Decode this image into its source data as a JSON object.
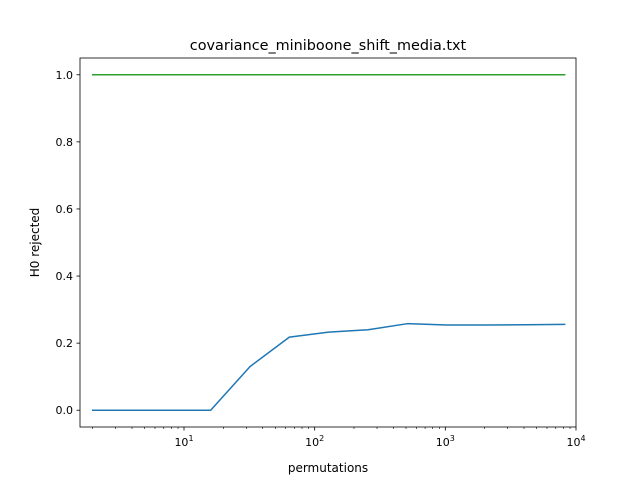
{
  "chart_data": {
    "type": "line",
    "title": "covariance_miniboone_shift_media.txt",
    "xlabel": "permutations",
    "ylabel": "H0 rejected",
    "xscale": "log",
    "xlim": [
      1.6,
      10000
    ],
    "ylim": [
      -0.05,
      1.05
    ],
    "grid": false,
    "x_ticks": [
      {
        "base": "10",
        "exp": "1",
        "value": 10
      },
      {
        "base": "10",
        "exp": "2",
        "value": 100
      },
      {
        "base": "10",
        "exp": "3",
        "value": 1000
      },
      {
        "base": "10",
        "exp": "4",
        "value": 10000
      }
    ],
    "y_ticks": [
      {
        "label": "0.0",
        "value": 0.0
      },
      {
        "label": "0.2",
        "value": 0.2
      },
      {
        "label": "0.4",
        "value": 0.4
      },
      {
        "label": "0.6",
        "value": 0.6
      },
      {
        "label": "0.8",
        "value": 0.8
      },
      {
        "label": "1.0",
        "value": 1.0
      }
    ],
    "series": [
      {
        "color": "#1f77b4",
        "x": [
          2,
          4,
          8,
          16,
          32,
          64,
          128,
          256,
          512,
          1024,
          2048,
          4096,
          8192
        ],
        "y": [
          0.0,
          0.0,
          0.0,
          0.0,
          0.13,
          0.218,
          0.233,
          0.24,
          0.258,
          0.254,
          0.254,
          0.255,
          0.256
        ]
      },
      {
        "color": "#2ca02c",
        "x": [
          2,
          4,
          8,
          16,
          32,
          64,
          128,
          256,
          512,
          1024,
          2048,
          4096,
          8192
        ],
        "y": [
          1.0,
          1.0,
          1.0,
          1.0,
          1.0,
          1.0,
          1.0,
          1.0,
          1.0,
          1.0,
          1.0,
          1.0,
          1.0
        ]
      }
    ]
  }
}
